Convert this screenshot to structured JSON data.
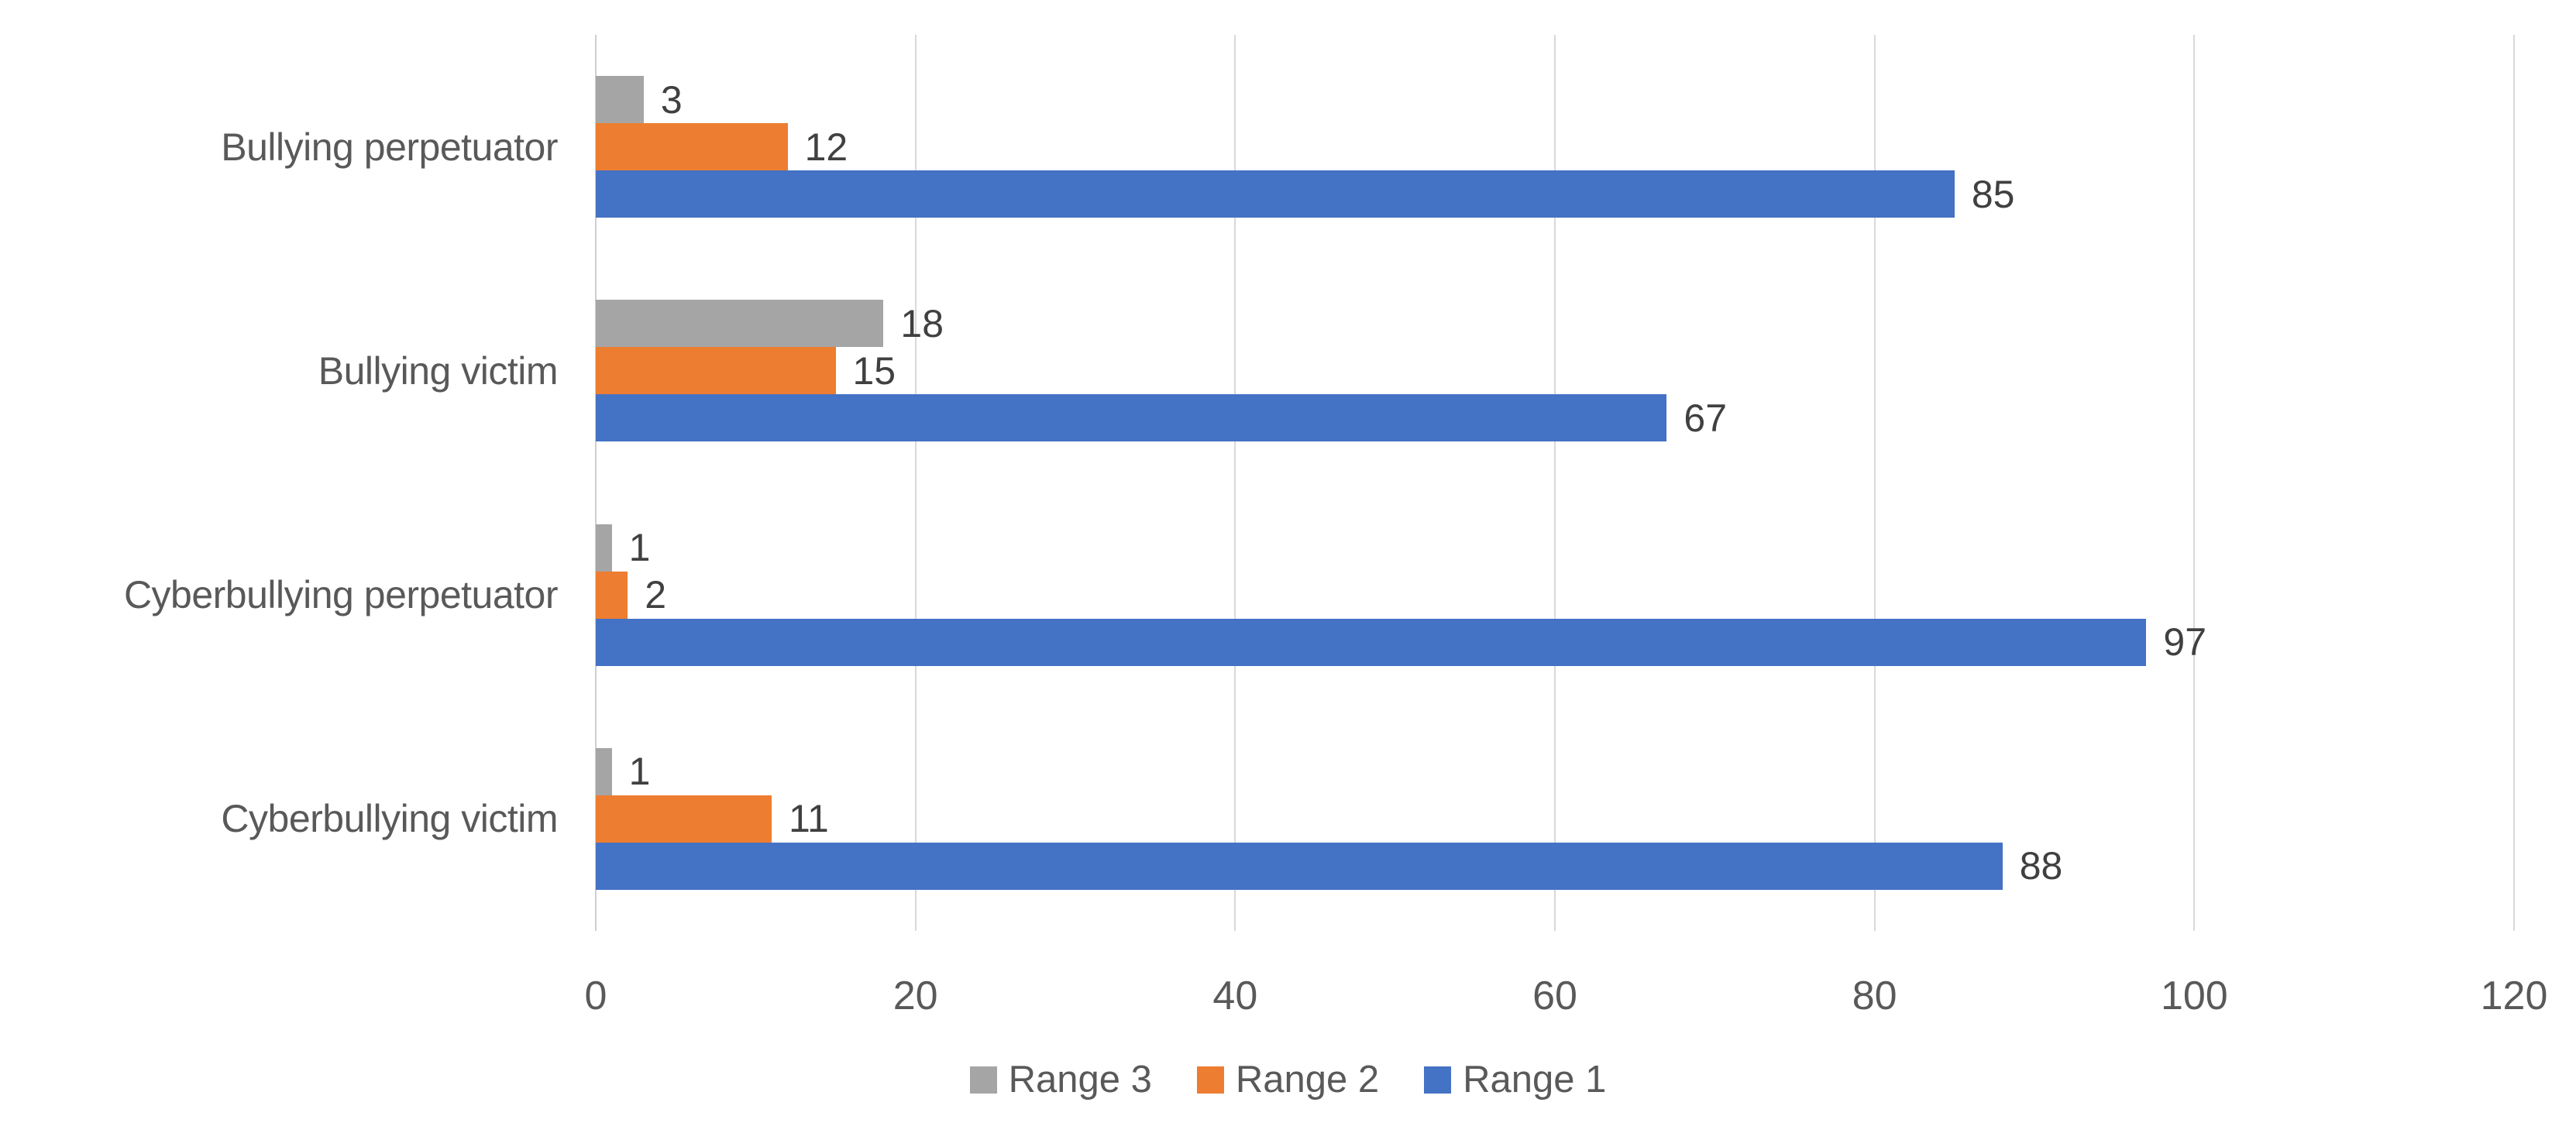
{
  "chart_data": {
    "type": "bar",
    "orientation": "horizontal",
    "title": "",
    "xlabel": "",
    "ylabel": "",
    "categories": [
      "Bullying perpetuator",
      "Bullying victim",
      "Cyberbullying perpetuator",
      "Cyberbullying victim"
    ],
    "series": [
      {
        "name": "Range 3",
        "color": "#A5A5A5",
        "values": [
          3,
          18,
          1,
          1
        ]
      },
      {
        "name": "Range 2",
        "color": "#ED7D31",
        "values": [
          12,
          15,
          2,
          11
        ]
      },
      {
        "name": "Range 1",
        "color": "#4472C4",
        "values": [
          85,
          67,
          97,
          88
        ]
      }
    ],
    "value_labels_shown": true,
    "xlim": [
      0,
      120
    ],
    "x_ticks": [
      0,
      20,
      40,
      60,
      80,
      100,
      120
    ],
    "grid": "vertical",
    "gridline_color": "#D9D9D9",
    "label_color": "#595959",
    "data_label_color": "#404040",
    "legend_position": "bottom-center",
    "legend_order": [
      "Range 3",
      "Range 2",
      "Range 1"
    ]
  }
}
